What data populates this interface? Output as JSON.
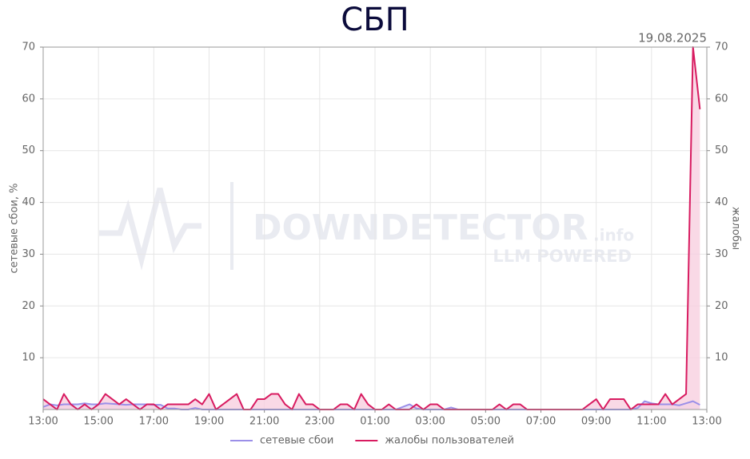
{
  "chart_data": {
    "type": "line",
    "title": "СБП",
    "annotation": "19.08.2025",
    "y_label": "сетевые сбои, %",
    "y2_label": "жалобы",
    "watermark": {
      "name": "DOWNDETECTOR",
      "suffix": ".info",
      "tagline": "LLM POWERED"
    },
    "categories": [
      "13:00",
      null,
      null,
      null,
      null,
      null,
      null,
      null,
      "15:00",
      null,
      null,
      null,
      null,
      null,
      null,
      null,
      "17:00",
      null,
      null,
      null,
      null,
      null,
      null,
      null,
      "19:00",
      null,
      null,
      null,
      null,
      null,
      null,
      null,
      "21:00",
      null,
      null,
      null,
      null,
      null,
      null,
      null,
      "23:00",
      null,
      null,
      null,
      null,
      null,
      null,
      null,
      "01:00",
      null,
      null,
      null,
      null,
      null,
      null,
      null,
      "03:00",
      null,
      null,
      null,
      null,
      null,
      null,
      null,
      "05:00",
      null,
      null,
      null,
      null,
      null,
      null,
      null,
      "07:00",
      null,
      null,
      null,
      null,
      null,
      null,
      null,
      "09:00",
      null,
      null,
      null,
      null,
      null,
      null,
      null,
      "11:00",
      null,
      null,
      null,
      null,
      null,
      null,
      null,
      "13:00"
    ],
    "series": [
      {
        "name": "сетевые сбои",
        "color": "#9b8fe8",
        "fill": "#e4e0fa",
        "values": [
          0.5,
          1,
          0.8,
          1,
          1,
          1,
          1.2,
          1,
          1,
          1.2,
          1.1,
          1,
          0.9,
          1,
          1,
          1,
          0.9,
          0.9,
          0.2,
          0.2,
          0,
          0,
          0.3,
          0,
          0,
          0,
          0,
          0,
          0,
          0,
          0,
          0,
          0,
          0,
          0,
          0,
          0,
          0,
          0,
          0,
          0,
          0,
          0,
          0,
          0,
          0,
          0,
          0,
          0,
          0,
          0,
          0,
          0.5,
          1,
          0.2,
          0,
          0,
          0,
          0,
          0.4,
          0,
          0,
          0,
          0,
          0,
          0,
          0,
          0,
          0,
          0,
          0,
          0,
          0,
          0,
          0,
          0,
          0,
          0,
          0,
          0,
          0,
          0,
          0,
          0,
          0,
          0,
          0.3,
          1.6,
          1.2,
          1,
          1,
          1,
          0.8,
          1.2,
          1.6,
          0.9,
          null
        ]
      },
      {
        "name": "жалобы пользователей",
        "color": "#d81b60",
        "fill": "#f8cfe0",
        "axis": "y2",
        "values": [
          2,
          1,
          0,
          3,
          1,
          0,
          1,
          0,
          1,
          3,
          2,
          1,
          2,
          1,
          0,
          1,
          1,
          0,
          1,
          1,
          1,
          1,
          2,
          1,
          3,
          0,
          1,
          2,
          3,
          0,
          0,
          2,
          2,
          3,
          3,
          1,
          0,
          3,
          1,
          1,
          0,
          0,
          0,
          1,
          1,
          0,
          3,
          1,
          0,
          0,
          1,
          0,
          0,
          0,
          1,
          0,
          1,
          1,
          0,
          0,
          0,
          0,
          0,
          0,
          0,
          0,
          1,
          0,
          1,
          1,
          0,
          0,
          0,
          0,
          0,
          0,
          0,
          0,
          0,
          1,
          2,
          0,
          2,
          2,
          2,
          0,
          1,
          1,
          1,
          1,
          3,
          1,
          2,
          3,
          70,
          58,
          null
        ]
      }
    ],
    "ylim": [
      0,
      70
    ],
    "yticks": [
      10,
      20,
      30,
      40,
      50,
      60,
      70
    ],
    "y2lim": [
      0,
      70
    ],
    "y2ticks": [
      10,
      20,
      30,
      40,
      50,
      60,
      70
    ],
    "grid": true,
    "legend": "bottom"
  }
}
